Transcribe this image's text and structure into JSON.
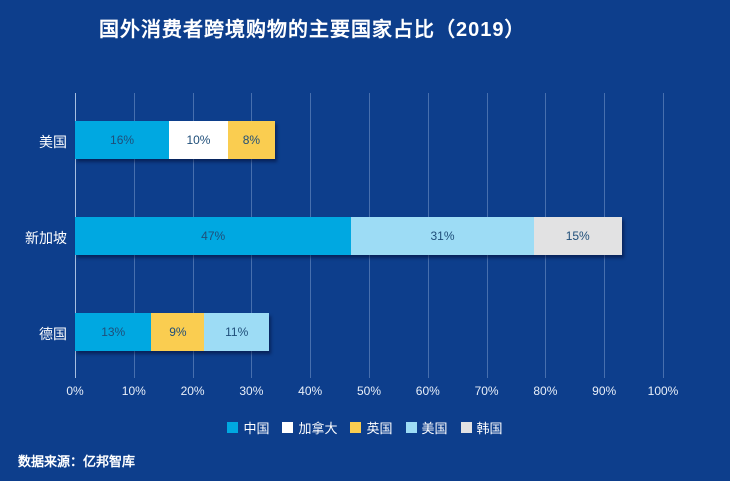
{
  "chart_data": {
    "type": "bar",
    "variant": "horizontal-stacked",
    "title": "国外消费者跨境购物的主要国家占比（2019）",
    "source": "数据来源：亿邦智库",
    "categories": [
      "美国",
      "新加坡",
      "德国"
    ],
    "series": [
      {
        "name": "中国",
        "color": "#00A8E1",
        "values": [
          16,
          47,
          13
        ]
      },
      {
        "name": "加拿大",
        "color": "#FFFFFF",
        "values": [
          10,
          0,
          0
        ]
      },
      {
        "name": "英国",
        "color": "#FACD50",
        "values": [
          8,
          0,
          9
        ]
      },
      {
        "name": "美国",
        "color": "#9DDCF5",
        "values": [
          0,
          31,
          11
        ]
      },
      {
        "name": "韩国",
        "color": "#E2E2E3",
        "values": [
          0,
          15,
          0
        ]
      }
    ],
    "x_ticks": [
      "0%",
      "10%",
      "20%",
      "30%",
      "40%",
      "50%",
      "60%",
      "70%",
      "80%",
      "90%",
      "100%"
    ],
    "xlim": [
      0,
      100
    ],
    "grid": true,
    "legend_position": "bottom",
    "bar_label_suffix": "%"
  },
  "colors": {
    "background": "#0D3E8C",
    "title": "#FFFFFF",
    "bar_label": "#1F4E79",
    "category_label": "#FFFFFF",
    "tick_label": "#E8EFF9",
    "legend_label": "#FFFFFF",
    "grid_line": "rgba(165,193,232,0.38)",
    "axis_line": "rgba(205,222,245,0.8)",
    "source": "#FFFFFF"
  }
}
